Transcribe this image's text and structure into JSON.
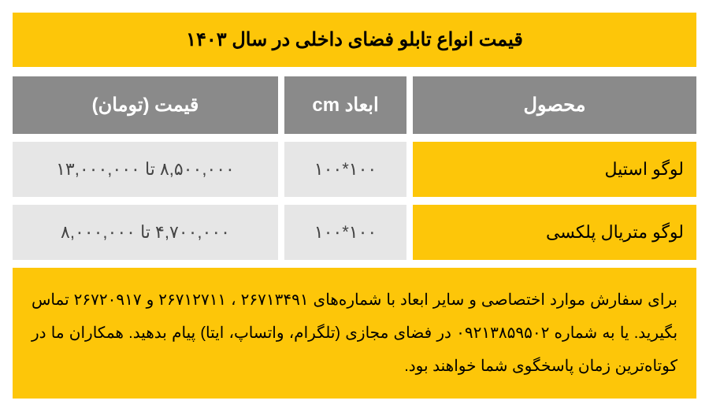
{
  "colors": {
    "yellow": "#fdc609",
    "gray_header": "#8a8a8a",
    "gray_cell": "#e6e6e6",
    "text_dark": "#000000",
    "text_gray": "#444444",
    "header_text": "#ffffff",
    "page_bg": "#ffffff"
  },
  "typography": {
    "title_fontsize": 24,
    "header_fontsize": 24,
    "cell_fontsize": 22,
    "footer_fontsize": 20,
    "font_family": "Tahoma"
  },
  "layout": {
    "col_product_width": 360,
    "col_dim_width": 155,
    "gap": 8,
    "row_margin": 10
  },
  "title": "قیمت انواع تابلو فضای داخلی در سال ۱۴۰۳",
  "columns": {
    "product": "محصول",
    "dimensions": "ابعاد cm",
    "price": "قیمت (تومان)"
  },
  "rows": [
    {
      "product": "لوگو استیل",
      "dimensions": "۱۰۰*۱۰۰",
      "price": "۸,۵۰۰,۰۰۰ تا ۱۳,۰۰۰,۰۰۰"
    },
    {
      "product": "لوگو متریال پلکسی",
      "dimensions": "۱۰۰*۱۰۰",
      "price": "۴,۷۰۰,۰۰۰ تا ۸,۰۰۰,۰۰۰"
    }
  ],
  "footer": "برای سفارش موارد اختصاصی و سایر ابعاد با شماره‌های ۲۶۷۱۳۴۹۱ ، ۲۶۷۱۲۷۱۱ و ۲۶۷۲۰۹۱۷ تماس بگیرید. یا به شماره ۰۹۲۱۳۸۵۹۵۰۲ در فضای مجازی (تلگرام، واتساپ، ایتا) پیام بدهید. همکاران ما در کوتاه‌ترین زمان پاسخگوی شما خواهند بود."
}
